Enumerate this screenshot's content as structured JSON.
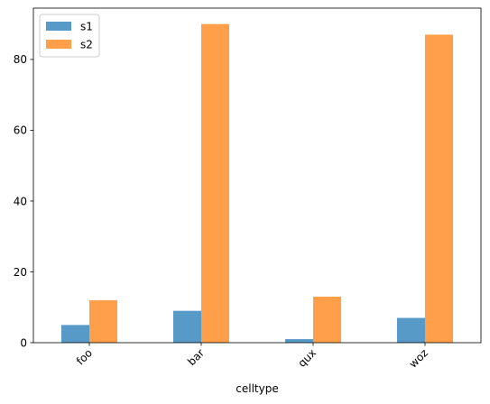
{
  "chart_data": {
    "type": "bar",
    "xlabel": "celltype",
    "ylabel": "",
    "categories": [
      "foo",
      "bar",
      "qux",
      "woz"
    ],
    "series": [
      {
        "name": "s1",
        "values": [
          5,
          9,
          1,
          7
        ],
        "color": "#1f77b4"
      },
      {
        "name": "s2",
        "values": [
          12,
          90,
          13,
          87
        ],
        "color": "#ff7f0e"
      }
    ],
    "ylim": [
      0,
      94.5
    ],
    "yticks": [
      0,
      20,
      40,
      60,
      80
    ],
    "bar_opacity": 0.75,
    "grid": false,
    "legend_position": "upper-left",
    "x_tick_rotation": 45
  }
}
